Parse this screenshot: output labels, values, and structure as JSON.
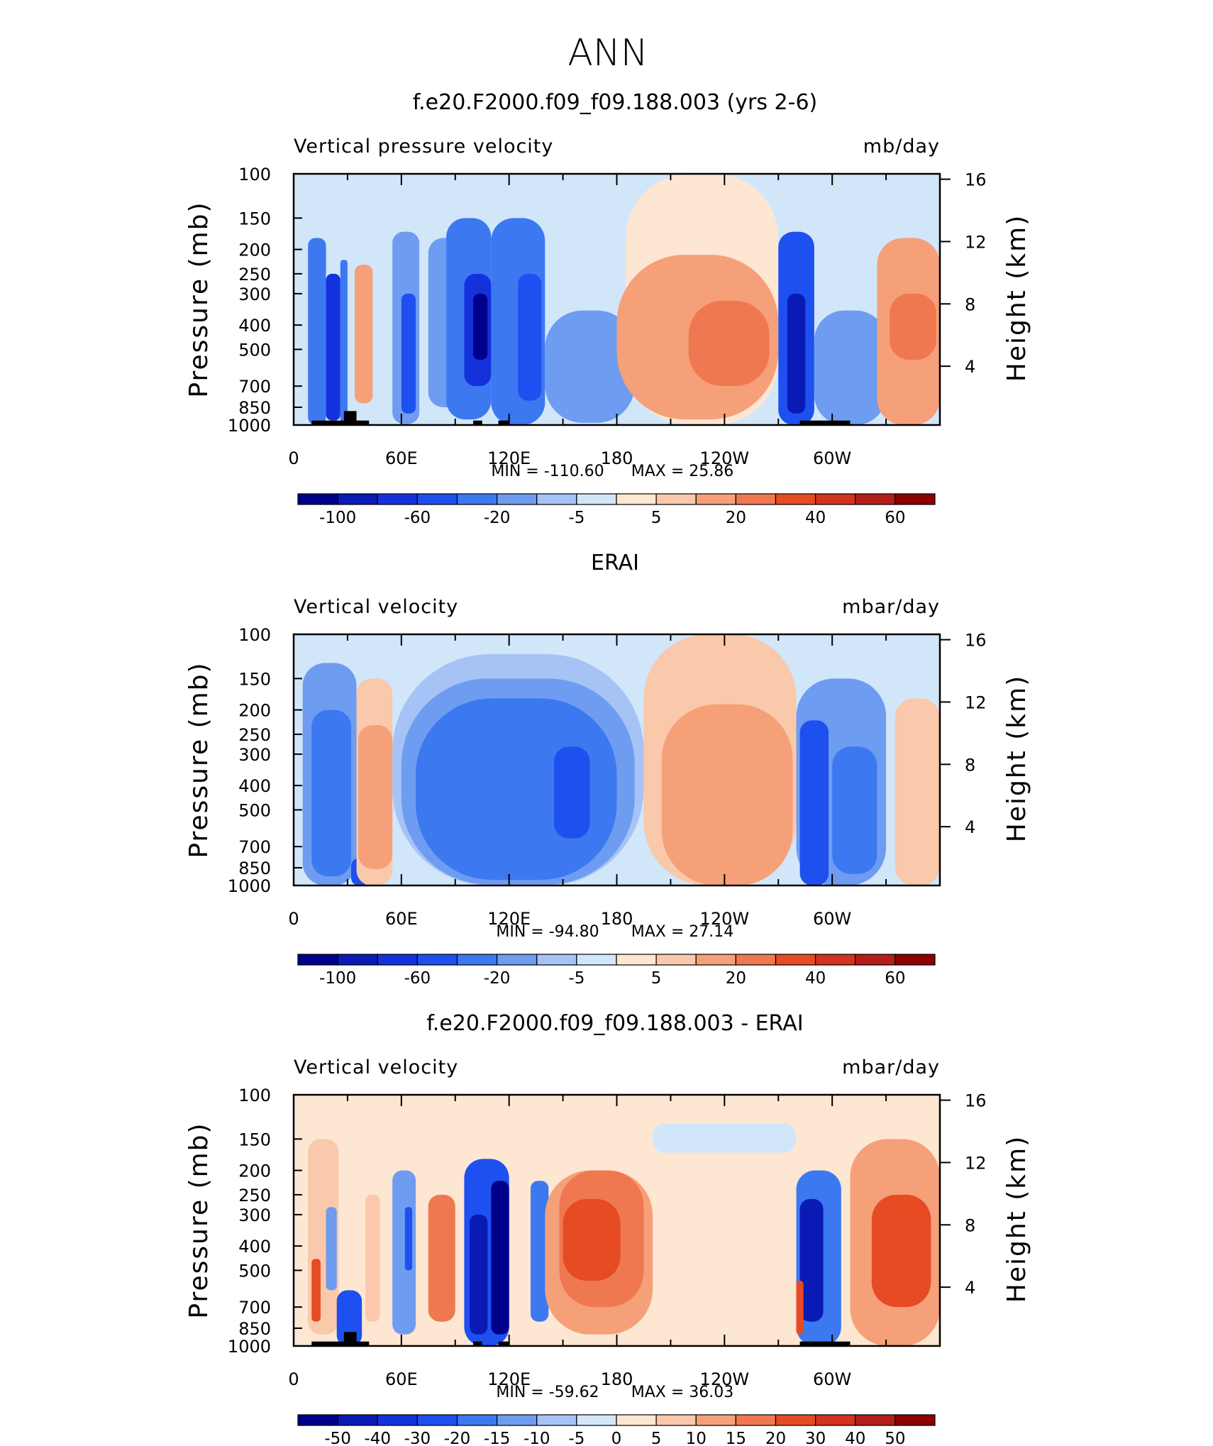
{
  "figure_title": "ANN",
  "pressure_axis_label": "Pressure (mb)",
  "height_axis_label": "Height (km)",
  "chart_data": [
    {
      "type": "heatmap",
      "title": "f.e20.F2000.f09_f09.188.003 (yrs 2-6)",
      "left_label": "Vertical pressure velocity",
      "units": "mb/day",
      "x_ticks": [
        "0",
        "60E",
        "120E",
        "180",
        "120W",
        "60W"
      ],
      "x_tick_values": [
        0,
        60,
        120,
        180,
        240,
        300
      ],
      "xlim": [
        0,
        360
      ],
      "y_ticks": [
        "100",
        "150",
        "200",
        "250",
        "300",
        "400",
        "500",
        "700",
        "850",
        "1000"
      ],
      "y_tick_values": [
        100,
        150,
        200,
        250,
        300,
        400,
        500,
        700,
        850,
        1000
      ],
      "ylim": [
        1000,
        100
      ],
      "height_ticks": [
        "16",
        "12",
        "8",
        "4"
      ],
      "height_tick_values": [
        16,
        12,
        8,
        4
      ],
      "min_label": "MIN = -110.60",
      "max_label": "MAX = 25.86",
      "min": -110.6,
      "max": 25.86,
      "colorbar_labels": [
        "-100",
        "-60",
        "-20",
        "-5",
        "5",
        "20",
        "40",
        "60"
      ],
      "cells": [
        {
          "lon": [
            8,
            18
          ],
          "p": [
            180,
            1000
          ],
          "v": -40
        },
        {
          "lon": [
            18,
            26
          ],
          "p": [
            250,
            960
          ],
          "v": -70
        },
        {
          "lon": [
            26,
            30
          ],
          "p": [
            220,
            1000
          ],
          "v": -25
        },
        {
          "lon": [
            34,
            44
          ],
          "p": [
            230,
            820
          ],
          "v": 15
        },
        {
          "lon": [
            55,
            70
          ],
          "p": [
            170,
            990
          ],
          "v": -20
        },
        {
          "lon": [
            60,
            68
          ],
          "p": [
            300,
            900
          ],
          "v": -45
        },
        {
          "lon": [
            75,
            95
          ],
          "p": [
            180,
            850
          ],
          "v": -15
        },
        {
          "lon": [
            85,
            110
          ],
          "p": [
            150,
            950
          ],
          "v": -35
        },
        {
          "lon": [
            95,
            110
          ],
          "p": [
            250,
            700
          ],
          "v": -80
        },
        {
          "lon": [
            100,
            108
          ],
          "p": [
            300,
            550
          ],
          "v": -105
        },
        {
          "lon": [
            110,
            140
          ],
          "p": [
            150,
            1000
          ],
          "v": -25
        },
        {
          "lon": [
            125,
            138
          ],
          "p": [
            250,
            800
          ],
          "v": -55
        },
        {
          "lon": [
            140,
            190
          ],
          "p": [
            350,
            980
          ],
          "v": -12
        },
        {
          "lon": [
            185,
            270
          ],
          "p": [
            100,
            1000
          ],
          "v": 4
        },
        {
          "lon": [
            180,
            270
          ],
          "p": [
            210,
            950
          ],
          "v": 12
        },
        {
          "lon": [
            220,
            265
          ],
          "p": [
            320,
            700
          ],
          "v": 22
        },
        {
          "lon": [
            270,
            290
          ],
          "p": [
            170,
            1000
          ],
          "v": -45
        },
        {
          "lon": [
            275,
            285
          ],
          "p": [
            300,
            900
          ],
          "v": -90
        },
        {
          "lon": [
            290,
            330
          ],
          "p": [
            350,
            1000
          ],
          "v": -15
        },
        {
          "lon": [
            325,
            360
          ],
          "p": [
            180,
            1000
          ],
          "v": 12
        },
        {
          "lon": [
            332,
            358
          ],
          "p": [
            300,
            550
          ],
          "v": 22
        }
      ],
      "land": [
        {
          "lon": [
            10,
            42
          ],
          "p": [
            960,
            1000
          ]
        },
        {
          "lon": [
            28,
            35
          ],
          "p": [
            880,
            1000
          ]
        },
        {
          "lon": [
            100,
            105
          ],
          "p": [
            960,
            1000
          ]
        },
        {
          "lon": [
            114,
            120
          ],
          "p": [
            960,
            1000
          ]
        },
        {
          "lon": [
            282,
            310
          ],
          "p": [
            960,
            1000
          ]
        }
      ]
    },
    {
      "type": "heatmap",
      "title": "ERAI",
      "left_label": "Vertical velocity",
      "units": "mbar/day",
      "x_ticks": [
        "0",
        "60E",
        "120E",
        "180",
        "120W",
        "60W"
      ],
      "x_tick_values": [
        0,
        60,
        120,
        180,
        240,
        300
      ],
      "xlim": [
        0,
        360
      ],
      "y_ticks": [
        "100",
        "150",
        "200",
        "250",
        "300",
        "400",
        "500",
        "700",
        "850",
        "1000"
      ],
      "y_tick_values": [
        100,
        150,
        200,
        250,
        300,
        400,
        500,
        700,
        850,
        1000
      ],
      "ylim": [
        1000,
        100
      ],
      "height_ticks": [
        "16",
        "12",
        "8",
        "4"
      ],
      "height_tick_values": [
        16,
        12,
        8,
        4
      ],
      "min_label": "MIN = -94.80",
      "max_label": "MAX = 27.14",
      "min": -94.8,
      "max": 27.14,
      "colorbar_labels": [
        "-100",
        "-60",
        "-20",
        "-5",
        "5",
        "20",
        "40",
        "60"
      ],
      "cells": [
        {
          "lon": [
            5,
            35
          ],
          "p": [
            130,
            1000
          ],
          "v": -20
        },
        {
          "lon": [
            10,
            32
          ],
          "p": [
            200,
            920
          ],
          "v": -40
        },
        {
          "lon": [
            32,
            42
          ],
          "p": [
            780,
            1000
          ],
          "v": -60
        },
        {
          "lon": [
            35,
            55
          ],
          "p": [
            150,
            1000
          ],
          "v": 7
        },
        {
          "lon": [
            36,
            55
          ],
          "p": [
            230,
            860
          ],
          "v": 15
        },
        {
          "lon": [
            55,
            195
          ],
          "p": [
            120,
            1000
          ],
          "v": -10
        },
        {
          "lon": [
            60,
            190
          ],
          "p": [
            150,
            990
          ],
          "v": -20
        },
        {
          "lon": [
            68,
            180
          ],
          "p": [
            180,
            950
          ],
          "v": -40
        },
        {
          "lon": [
            145,
            165
          ],
          "p": [
            280,
            650
          ],
          "v": -55
        },
        {
          "lon": [
            195,
            280
          ],
          "p": [
            100,
            1000
          ],
          "v": 5
        },
        {
          "lon": [
            205,
            278
          ],
          "p": [
            190,
            1000
          ],
          "v": 13
        },
        {
          "lon": [
            230,
            278
          ],
          "p": [
            280,
            700
          ],
          "v": 18
        },
        {
          "lon": [
            280,
            330
          ],
          "p": [
            150,
            1000
          ],
          "v": -20
        },
        {
          "lon": [
            282,
            298
          ],
          "p": [
            220,
            1000
          ],
          "v": -45
        },
        {
          "lon": [
            300,
            325
          ],
          "p": [
            280,
            900
          ],
          "v": -30
        },
        {
          "lon": [
            335,
            360
          ],
          "p": [
            180,
            1000
          ],
          "v": 6
        }
      ],
      "land": []
    },
    {
      "type": "heatmap",
      "title": "f.e20.F2000.f09_f09.188.003 - ERAI",
      "left_label": "Vertical velocity",
      "units": "mbar/day",
      "x_ticks": [
        "0",
        "60E",
        "120E",
        "180",
        "120W",
        "60W"
      ],
      "x_tick_values": [
        0,
        60,
        120,
        180,
        240,
        300
      ],
      "xlim": [
        0,
        360
      ],
      "y_ticks": [
        "100",
        "150",
        "200",
        "250",
        "300",
        "400",
        "500",
        "700",
        "850",
        "1000"
      ],
      "y_tick_values": [
        100,
        150,
        200,
        250,
        300,
        400,
        500,
        700,
        850,
        1000
      ],
      "ylim": [
        1000,
        100
      ],
      "height_ticks": [
        "16",
        "12",
        "8",
        "4"
      ],
      "height_tick_values": [
        16,
        12,
        8,
        4
      ],
      "min_label": "MIN = -59.62",
      "max_label": "MAX = 36.03",
      "min": -59.62,
      "max": 36.03,
      "colorbar_labels": [
        "-50",
        "-40",
        "-30",
        "-20",
        "-15",
        "-10",
        "-5",
        "0",
        "5",
        "10",
        "15",
        "20",
        "30",
        "40",
        "50"
      ],
      "cells": [
        {
          "lon": [
            0,
            360
          ],
          "p": [
            100,
            1000
          ],
          "v": 3
        },
        {
          "lon": [
            8,
            25
          ],
          "p": [
            150,
            900
          ],
          "v": 8
        },
        {
          "lon": [
            10,
            15
          ],
          "p": [
            450,
            800
          ],
          "v": 22
        },
        {
          "lon": [
            18,
            24
          ],
          "p": [
            280,
            600
          ],
          "v": -12
        },
        {
          "lon": [
            24,
            38
          ],
          "p": [
            600,
            1000
          ],
          "v": -25
        },
        {
          "lon": [
            40,
            48
          ],
          "p": [
            250,
            800
          ],
          "v": 8
        },
        {
          "lon": [
            55,
            68
          ],
          "p": [
            200,
            900
          ],
          "v": -12
        },
        {
          "lon": [
            62,
            66
          ],
          "p": [
            280,
            500
          ],
          "v": -25
        },
        {
          "lon": [
            75,
            90
          ],
          "p": [
            250,
            800
          ],
          "v": 15
        },
        {
          "lon": [
            95,
            120
          ],
          "p": [
            180,
            1000
          ],
          "v": -25
        },
        {
          "lon": [
            98,
            108
          ],
          "p": [
            300,
            900
          ],
          "v": -45
        },
        {
          "lon": [
            110,
            120
          ],
          "p": [
            220,
            900
          ],
          "v": -55
        },
        {
          "lon": [
            132,
            142
          ],
          "p": [
            220,
            800
          ],
          "v": -20
        },
        {
          "lon": [
            140,
            200
          ],
          "p": [
            200,
            900
          ],
          "v": 10
        },
        {
          "lon": [
            148,
            195
          ],
          "p": [
            200,
            700
          ],
          "v": 16
        },
        {
          "lon": [
            150,
            182
          ],
          "p": [
            260,
            550
          ],
          "v": 25
        },
        {
          "lon": [
            200,
            280
          ],
          "p": [
            130,
            170
          ],
          "v": -3
        },
        {
          "lon": [
            280,
            305
          ],
          "p": [
            200,
            1000
          ],
          "v": -18
        },
        {
          "lon": [
            282,
            295
          ],
          "p": [
            260,
            800
          ],
          "v": -45
        },
        {
          "lon": [
            280,
            284
          ],
          "p": [
            550,
            900
          ],
          "v": 25
        },
        {
          "lon": [
            310,
            360
          ],
          "p": [
            150,
            1000
          ],
          "v": 10
        },
        {
          "lon": [
            322,
            355
          ],
          "p": [
            250,
            700
          ],
          "v": 20
        },
        {
          "lon": [
            330,
            350
          ],
          "p": [
            300,
            550
          ],
          "v": 28
        }
      ],
      "land": [
        {
          "lon": [
            10,
            42
          ],
          "p": [
            960,
            1000
          ]
        },
        {
          "lon": [
            28,
            35
          ],
          "p": [
            880,
            1000
          ]
        },
        {
          "lon": [
            100,
            105
          ],
          "p": [
            960,
            1000
          ]
        },
        {
          "lon": [
            114,
            120
          ],
          "p": [
            960,
            1000
          ]
        },
        {
          "lon": [
            282,
            310
          ],
          "p": [
            960,
            1000
          ]
        }
      ]
    }
  ],
  "colors": {
    "scale_main": [
      "#00008b",
      "#0a1ab4",
      "#1432dc",
      "#1e50f0",
      "#3c78f0",
      "#6e9cf0",
      "#a5c3f5",
      "#d2e6fa",
      "#fde6d2",
      "#fac8aa",
      "#f5a078",
      "#f07850",
      "#e64b23",
      "#d2321e",
      "#b41e19",
      "#8c0000"
    ],
    "scale_main_bounds": [
      -100,
      -80,
      -60,
      -40,
      -20,
      -10,
      -5,
      0,
      5,
      10,
      20,
      30,
      40,
      50,
      60
    ],
    "scale_diff": [
      "#00008b",
      "#0a1ab4",
      "#1432dc",
      "#1e50f0",
      "#3c78f0",
      "#6e9cf0",
      "#a5c3f5",
      "#d2e6fa",
      "#fde6d2",
      "#fac8aa",
      "#f5a078",
      "#f07850",
      "#e64b23",
      "#d2321e",
      "#b41e19",
      "#8c0000"
    ],
    "scale_diff_bounds": [
      -50,
      -40,
      -30,
      -20,
      -15,
      -10,
      -5,
      0,
      5,
      10,
      15,
      20,
      30,
      40,
      50
    ],
    "land": "#000000",
    "axis": "#000000"
  }
}
